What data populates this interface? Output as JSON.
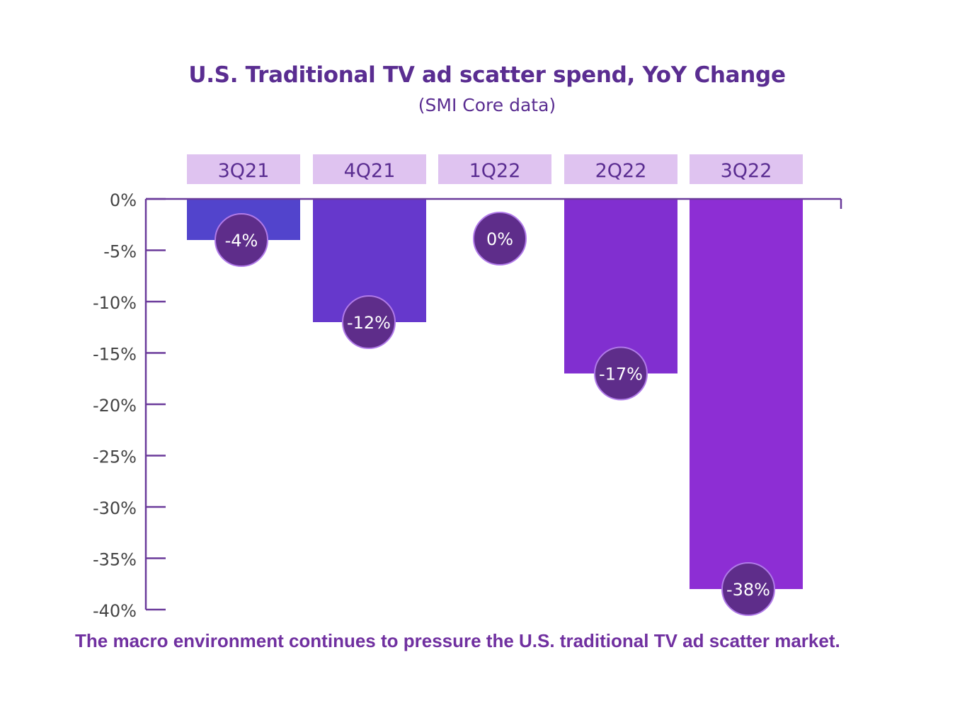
{
  "chart_data": {
    "type": "bar",
    "title": "U.S. Traditional TV ad scatter spend, YoY Change",
    "subtitle": "(SMI Core data)",
    "categories": [
      "3Q21",
      "4Q21",
      "1Q22",
      "2Q22",
      "3Q22"
    ],
    "values": [
      -4,
      -12,
      0,
      -17,
      -38
    ],
    "data_labels": [
      "-4%",
      "-12%",
      "0%",
      "-17%",
      "-38%"
    ],
    "ylim": [
      -40,
      0
    ],
    "yticks": [
      0,
      -5,
      -10,
      -15,
      -20,
      -25,
      -30,
      -35,
      -40
    ],
    "ytick_labels": [
      "0%",
      "-5%",
      "-10%",
      "-15%",
      "-20%",
      "-25%",
      "-30%",
      "-35%",
      "-40%"
    ],
    "xlabel": "",
    "ylabel": "",
    "grid": false,
    "category_labels_position": "top",
    "colors": {
      "bars": [
        "#5244cc",
        "#6638cc",
        "#7a33cf",
        "#812fd0",
        "#8d2ed4"
      ],
      "label_circle": "#5e2d8a",
      "label_circle_border": "#b07ae8",
      "category_box": "#dfc3f0",
      "axis": "#6a3a9a",
      "text": "#5a2d91"
    }
  },
  "caption": "The macro environment continues to pressure the U.S. traditional TV ad scatter market."
}
